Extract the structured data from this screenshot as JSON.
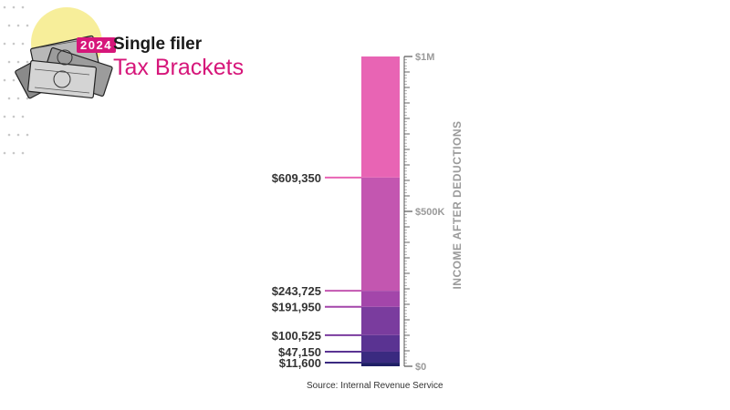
{
  "header": {
    "year_badge": "2024",
    "subtitle": "Single filer",
    "title": "Tax Brackets"
  },
  "illustration": {
    "icon": "money-stack-icon"
  },
  "source": "Source: Internal Revenue Service",
  "colors": {
    "accent": "#d6167a",
    "sun": "#f7ee9a",
    "brackets": [
      "#1f1f66",
      "#3a2a80",
      "#5a3392",
      "#7a3c9e",
      "#a346aa",
      "#c356b0",
      "#e864b4"
    ]
  },
  "chart_data": {
    "type": "bar",
    "orientation": "vertical-stacked",
    "ylabel": "INCOME AFTER DEDUCTIONS",
    "ylim": [
      0,
      1000000
    ],
    "yticks": [
      {
        "value": 0,
        "label": "$0"
      },
      {
        "value": 500000,
        "label": "$500K"
      },
      {
        "value": 1000000,
        "label": "$1M"
      }
    ],
    "thresholds": [
      {
        "value": 11600,
        "label": "$11,600"
      },
      {
        "value": 47150,
        "label": "$47,150"
      },
      {
        "value": 100525,
        "label": "$100,525"
      },
      {
        "value": 191950,
        "label": "$191,950"
      },
      {
        "value": 243725,
        "label": "$243,725"
      },
      {
        "value": 609350,
        "label": "$609,350"
      }
    ],
    "segments": [
      {
        "from": 0,
        "to": 11600
      },
      {
        "from": 11600,
        "to": 47150
      },
      {
        "from": 47150,
        "to": 100525
      },
      {
        "from": 100525,
        "to": 191950
      },
      {
        "from": 191950,
        "to": 243725
      },
      {
        "from": 243725,
        "to": 609350
      },
      {
        "from": 609350,
        "to": 1000000
      }
    ]
  }
}
